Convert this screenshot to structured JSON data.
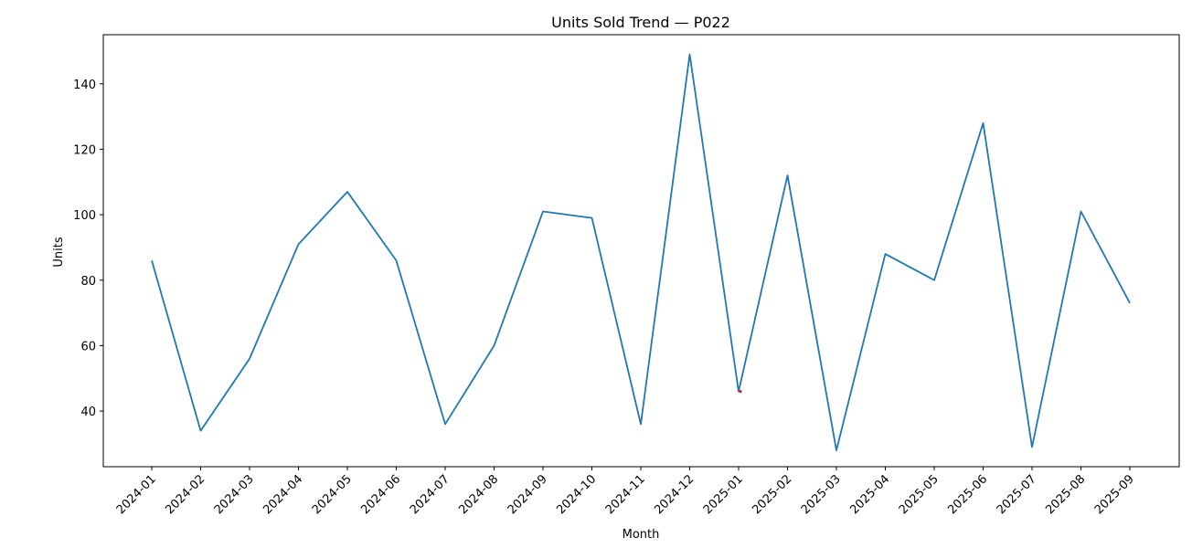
{
  "chart_data": {
    "type": "line",
    "title": "Units Sold Trend — P022",
    "xlabel": "Month",
    "ylabel": "Units",
    "x": [
      "2024-01",
      "2024-02",
      "2024-03",
      "2024-04",
      "2024-05",
      "2024-06",
      "2024-07",
      "2024-08",
      "2024-09",
      "2024-10",
      "2024-11",
      "2024-12",
      "2025-01",
      "2025-02",
      "2025-03",
      "2025-04",
      "2025-05",
      "2025-06",
      "2025-07",
      "2025-08",
      "2025-09"
    ],
    "series": [
      {
        "values": [
          86,
          34,
          56,
          91,
          107,
          86,
          36,
          60,
          101,
          99,
          36,
          149,
          46,
          112,
          28,
          88,
          80,
          128,
          29,
          101,
          73
        ]
      }
    ],
    "annotation_point": {
      "x": "2025-01",
      "y": 46
    },
    "ylim": [
      23,
      155
    ],
    "yticks": [
      40,
      60,
      80,
      100,
      120,
      140
    ],
    "grid": false,
    "colors": {
      "line": "#1f77b4",
      "marker": "#d62728"
    }
  }
}
